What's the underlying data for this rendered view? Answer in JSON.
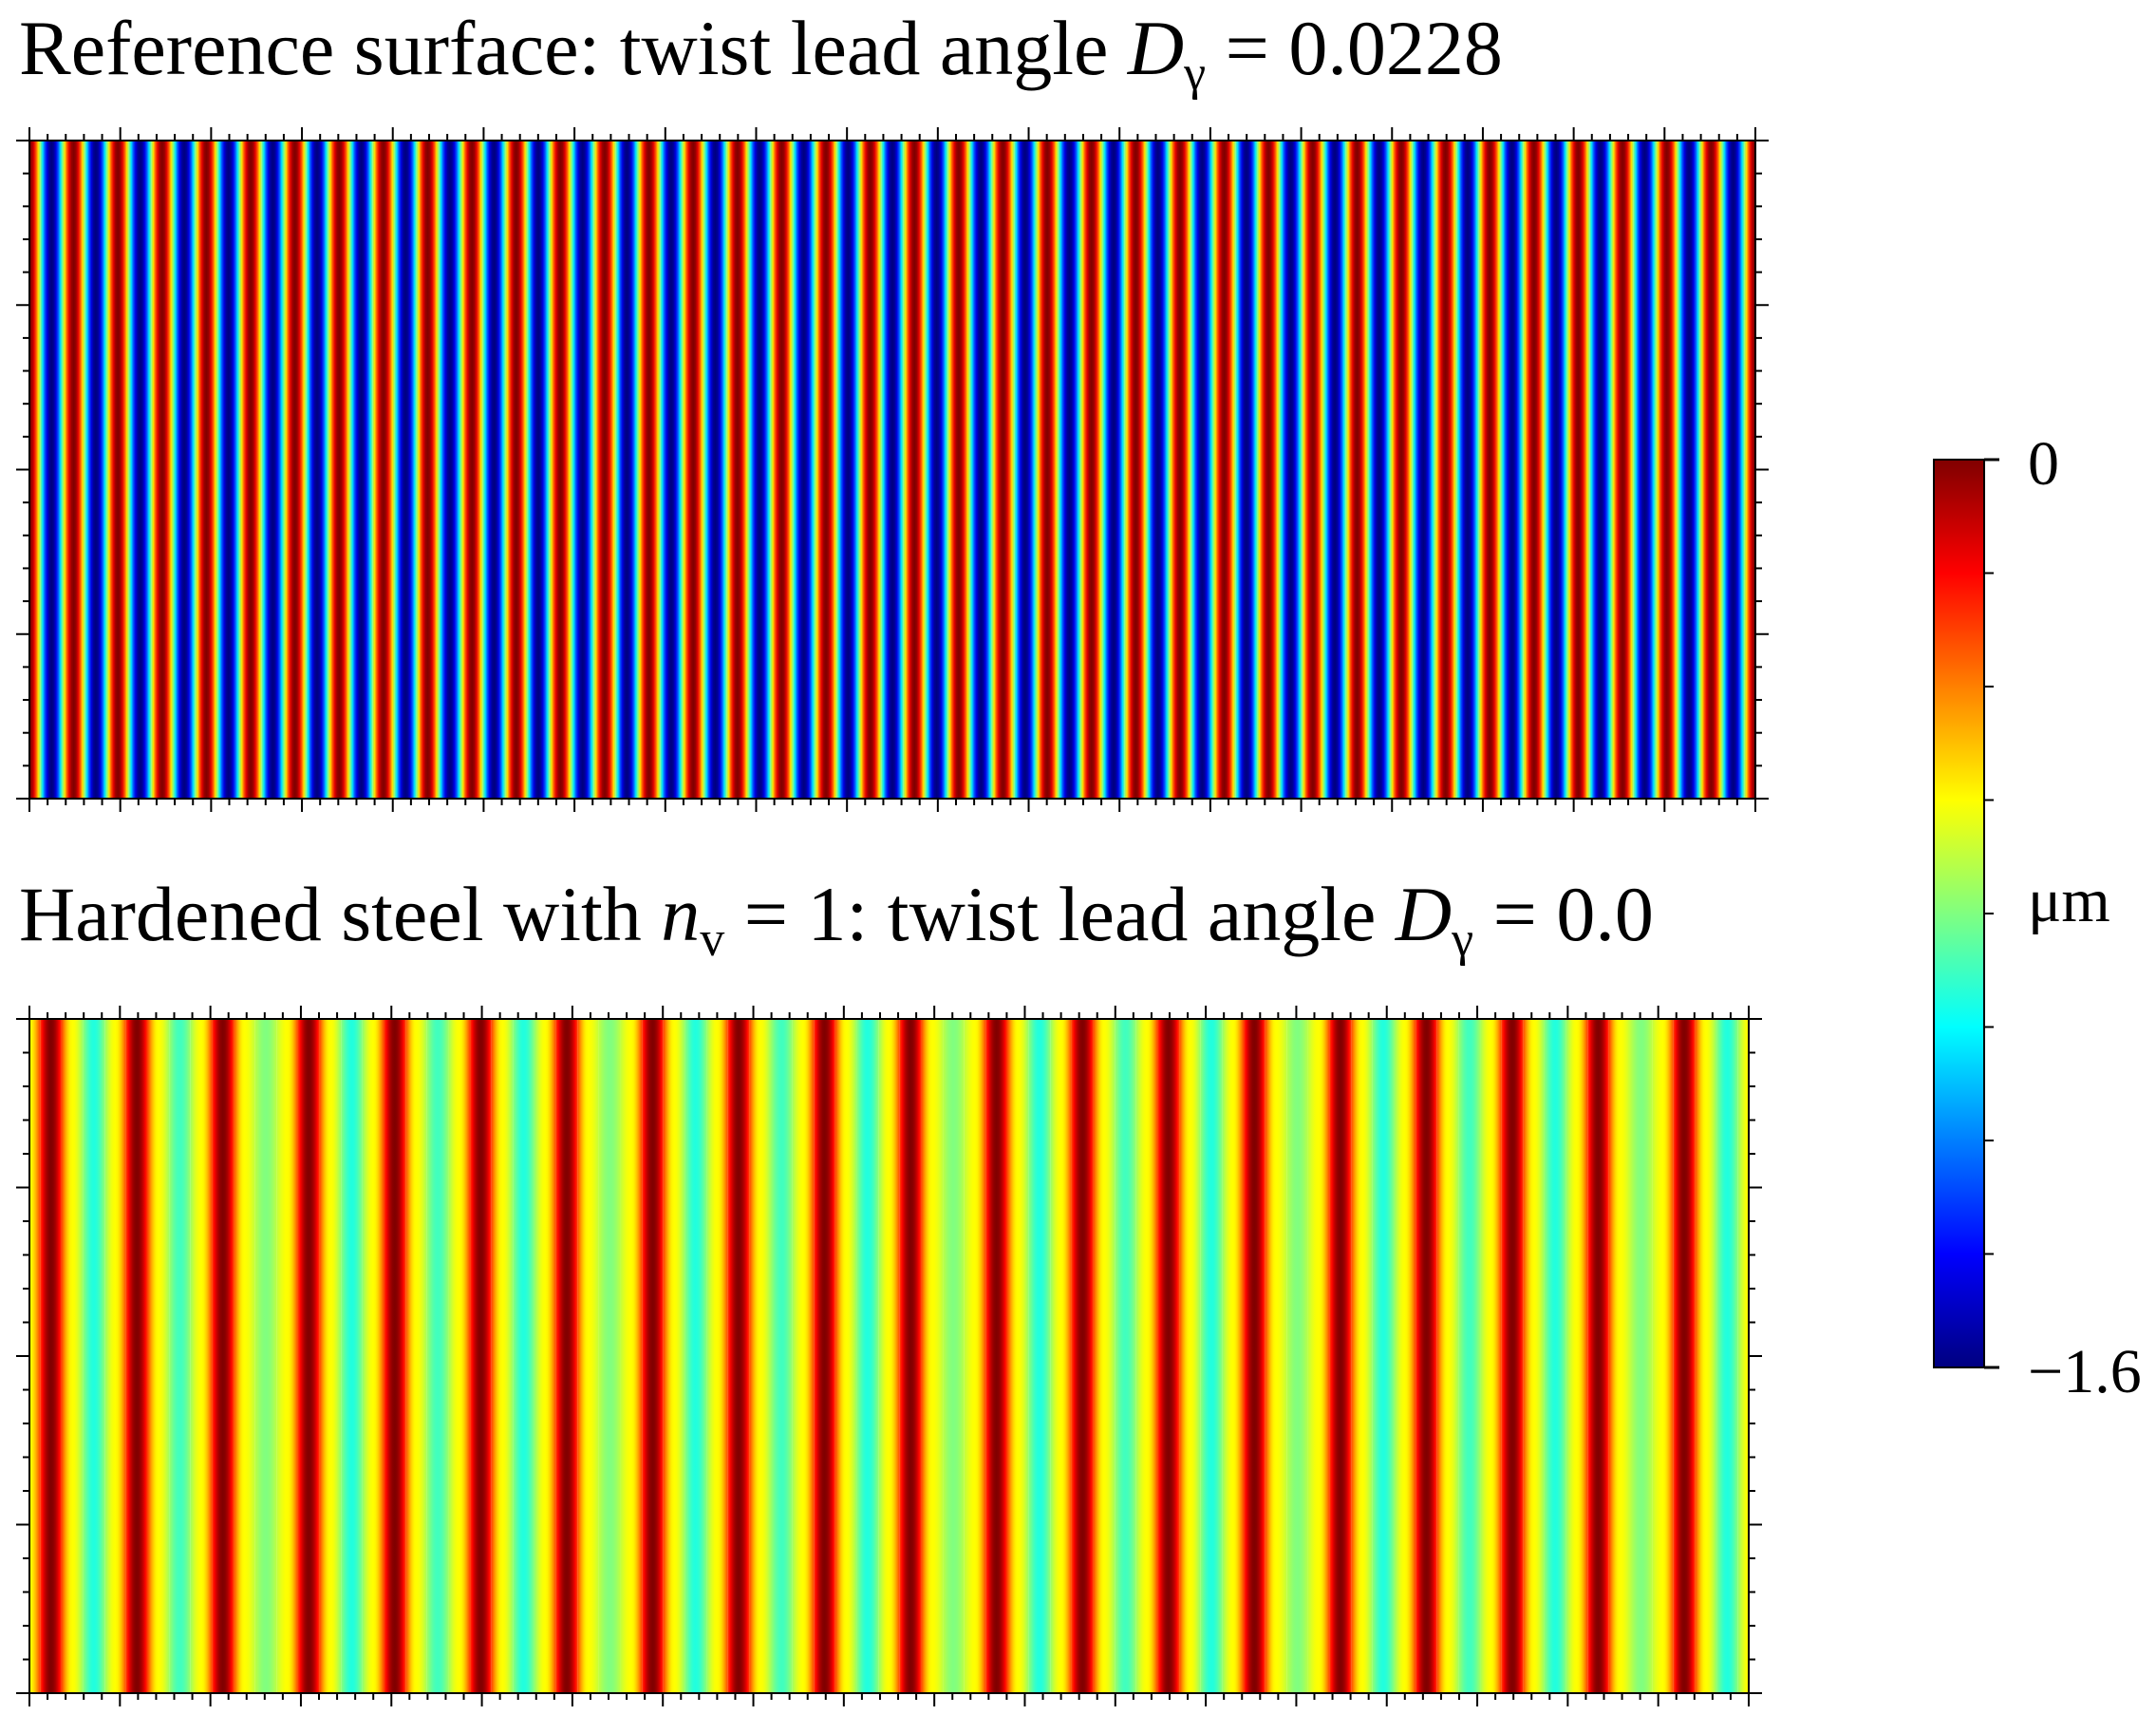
{
  "chart_data": [
    {
      "type": "heatmap-stripes",
      "title": [
        {
          "text": "Reference surface: twist lead angle ",
          "style": "normal"
        },
        {
          "text": "D",
          "style": "italic"
        },
        {
          "text": "γ",
          "style": "sub"
        },
        {
          "text": " = 0.0228",
          "style": "normal"
        }
      ],
      "values": [
        0,
        -1.6,
        0,
        -1.6,
        0,
        -1.6,
        0,
        -1.6,
        0,
        -1.6,
        0,
        -1.6,
        0,
        -1.6,
        0,
        -1.6,
        0,
        -1.6,
        0,
        -1.6,
        0,
        -1.6,
        0,
        -1.6,
        0,
        -1.6,
        0,
        -1.6,
        0,
        -1.6,
        0,
        -1.6,
        0,
        -1.6,
        0,
        -1.6,
        0,
        -1.6,
        0,
        -1.6,
        0,
        -1.6,
        0,
        -1.6,
        0,
        -1.6,
        0,
        -1.6,
        0,
        -1.6,
        0,
        -1.6,
        0,
        -1.6,
        0,
        -1.6,
        0,
        -1.6,
        0,
        -1.6,
        0,
        -1.6,
        0,
        -1.6,
        0,
        -1.6,
        0,
        -1.6,
        0,
        -1.6,
        0,
        -1.6,
        0,
        -1.6,
        0,
        -1.6,
        0,
        -1.6,
        0
      ]
    },
    {
      "type": "heatmap-stripes",
      "title": [
        {
          "text": "Hardened steel with ",
          "style": "normal"
        },
        {
          "text": "n",
          "style": "italic"
        },
        {
          "text": "v",
          "style": "sub"
        },
        {
          "text": " = 1: twist lead angle ",
          "style": "normal"
        },
        {
          "text": "D",
          "style": "italic"
        },
        {
          "text": "γ",
          "style": "sub"
        },
        {
          "text": " = 0.0",
          "style": "normal"
        }
      ],
      "values": [
        -0.6,
        0,
        -0.6,
        -0.95,
        -0.6,
        0,
        -0.6,
        -0.9,
        -0.6,
        0,
        -0.6,
        -0.8,
        -0.6,
        0,
        -0.6,
        -0.95,
        -0.6,
        0,
        -0.6,
        -0.9,
        -0.6,
        0,
        -0.6,
        -0.95,
        -0.6,
        0,
        -0.6,
        -0.8,
        -0.6,
        0,
        -0.6,
        -0.95,
        -0.6,
        0,
        -0.6,
        -0.9,
        -0.6,
        0,
        -0.6,
        -0.95,
        -0.6,
        0,
        -0.6,
        -0.8,
        -0.6,
        0,
        -0.6,
        -0.95,
        -0.6,
        0,
        -0.6,
        -0.9,
        -0.6,
        0,
        -0.6,
        -0.95,
        -0.6,
        0,
        -0.6,
        -0.8,
        -0.6,
        0,
        -0.6,
        -0.95,
        -0.6,
        0,
        -0.6,
        -0.9,
        -0.6,
        0,
        -0.6,
        -0.95,
        -0.6,
        0,
        -0.6,
        -0.8,
        -0.6,
        0,
        -0.6,
        -0.95,
        -0.6
      ]
    },
    {
      "type": "colorbar",
      "colormap": "jet",
      "label": "μm",
      "clim": [
        -1.6,
        0
      ],
      "ticks": [
        0,
        {
          "value": -1.6,
          "label": "−1.6"
        }
      ],
      "minor_ticks": [
        -0.2,
        -0.4,
        -0.6,
        -0.8,
        -1.0,
        -1.2,
        -1.4
      ]
    }
  ]
}
